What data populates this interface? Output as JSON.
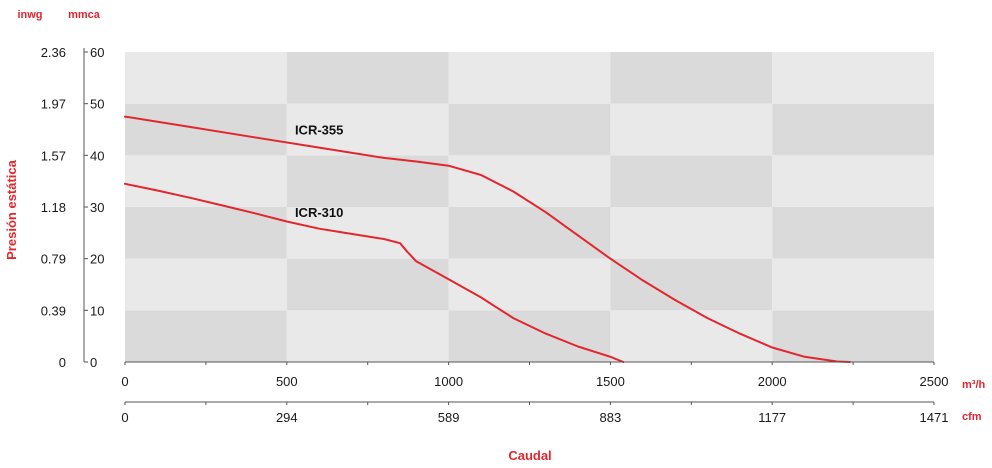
{
  "colors": {
    "curve": "#e3262e",
    "accent_text": "#e3262e",
    "band_dark": "#dadada",
    "band_light": "#e9e9e9",
    "axis": "#555555"
  },
  "units": {
    "left_axis": "inwg",
    "right_axis": "mmca",
    "x_primary": "m³/h",
    "x_secondary": "cfm"
  },
  "chart_data": {
    "type": "line",
    "xlabel": "Caudal",
    "ylabel": "Presión estática",
    "xlim": [
      0,
      2500
    ],
    "ylim": [
      0,
      60
    ],
    "x_ticks": [
      0,
      500,
      1000,
      1500,
      2000,
      2500
    ],
    "x_tick_labels": [
      "0",
      "500",
      "1000",
      "1500",
      "2000",
      "2500"
    ],
    "x2_tick_labels": [
      "0",
      "294",
      "589",
      "883",
      "1177",
      "1471"
    ],
    "y_ticks": [
      0,
      10,
      20,
      30,
      40,
      50,
      60
    ],
    "y_tick_labels": [
      "0",
      "10",
      "20",
      "30",
      "40",
      "50",
      "60"
    ],
    "y2_tick_labels": [
      "0",
      "0.39",
      "0.79",
      "1.18",
      "1.57",
      "1.97",
      "2.36"
    ],
    "series": [
      {
        "name": "ICR-355",
        "label_at": [
          600,
          45
        ],
        "x": [
          0,
          200,
          400,
          600,
          800,
          900,
          1000,
          1100,
          1200,
          1300,
          1400,
          1500,
          1600,
          1700,
          1800,
          1900,
          2000,
          2100,
          2200,
          2240
        ],
        "y": [
          47.5,
          45.5,
          43.5,
          41.5,
          39.5,
          38.8,
          38.0,
          36.2,
          33.0,
          29.0,
          24.5,
          20.0,
          15.8,
          12.0,
          8.5,
          5.5,
          2.8,
          1.0,
          0.1,
          0
        ]
      },
      {
        "name": "ICR-310",
        "label_at": [
          600,
          29
        ],
        "x": [
          0,
          100,
          200,
          300,
          400,
          500,
          600,
          700,
          800,
          850,
          870,
          900,
          1000,
          1100,
          1150,
          1200,
          1300,
          1400,
          1500,
          1540
        ],
        "y": [
          34.5,
          33.2,
          31.8,
          30.3,
          28.8,
          27.2,
          25.8,
          24.8,
          23.8,
          23.0,
          21.5,
          19.5,
          16.0,
          12.5,
          10.5,
          8.5,
          5.5,
          3.0,
          1.0,
          0
        ]
      }
    ]
  }
}
